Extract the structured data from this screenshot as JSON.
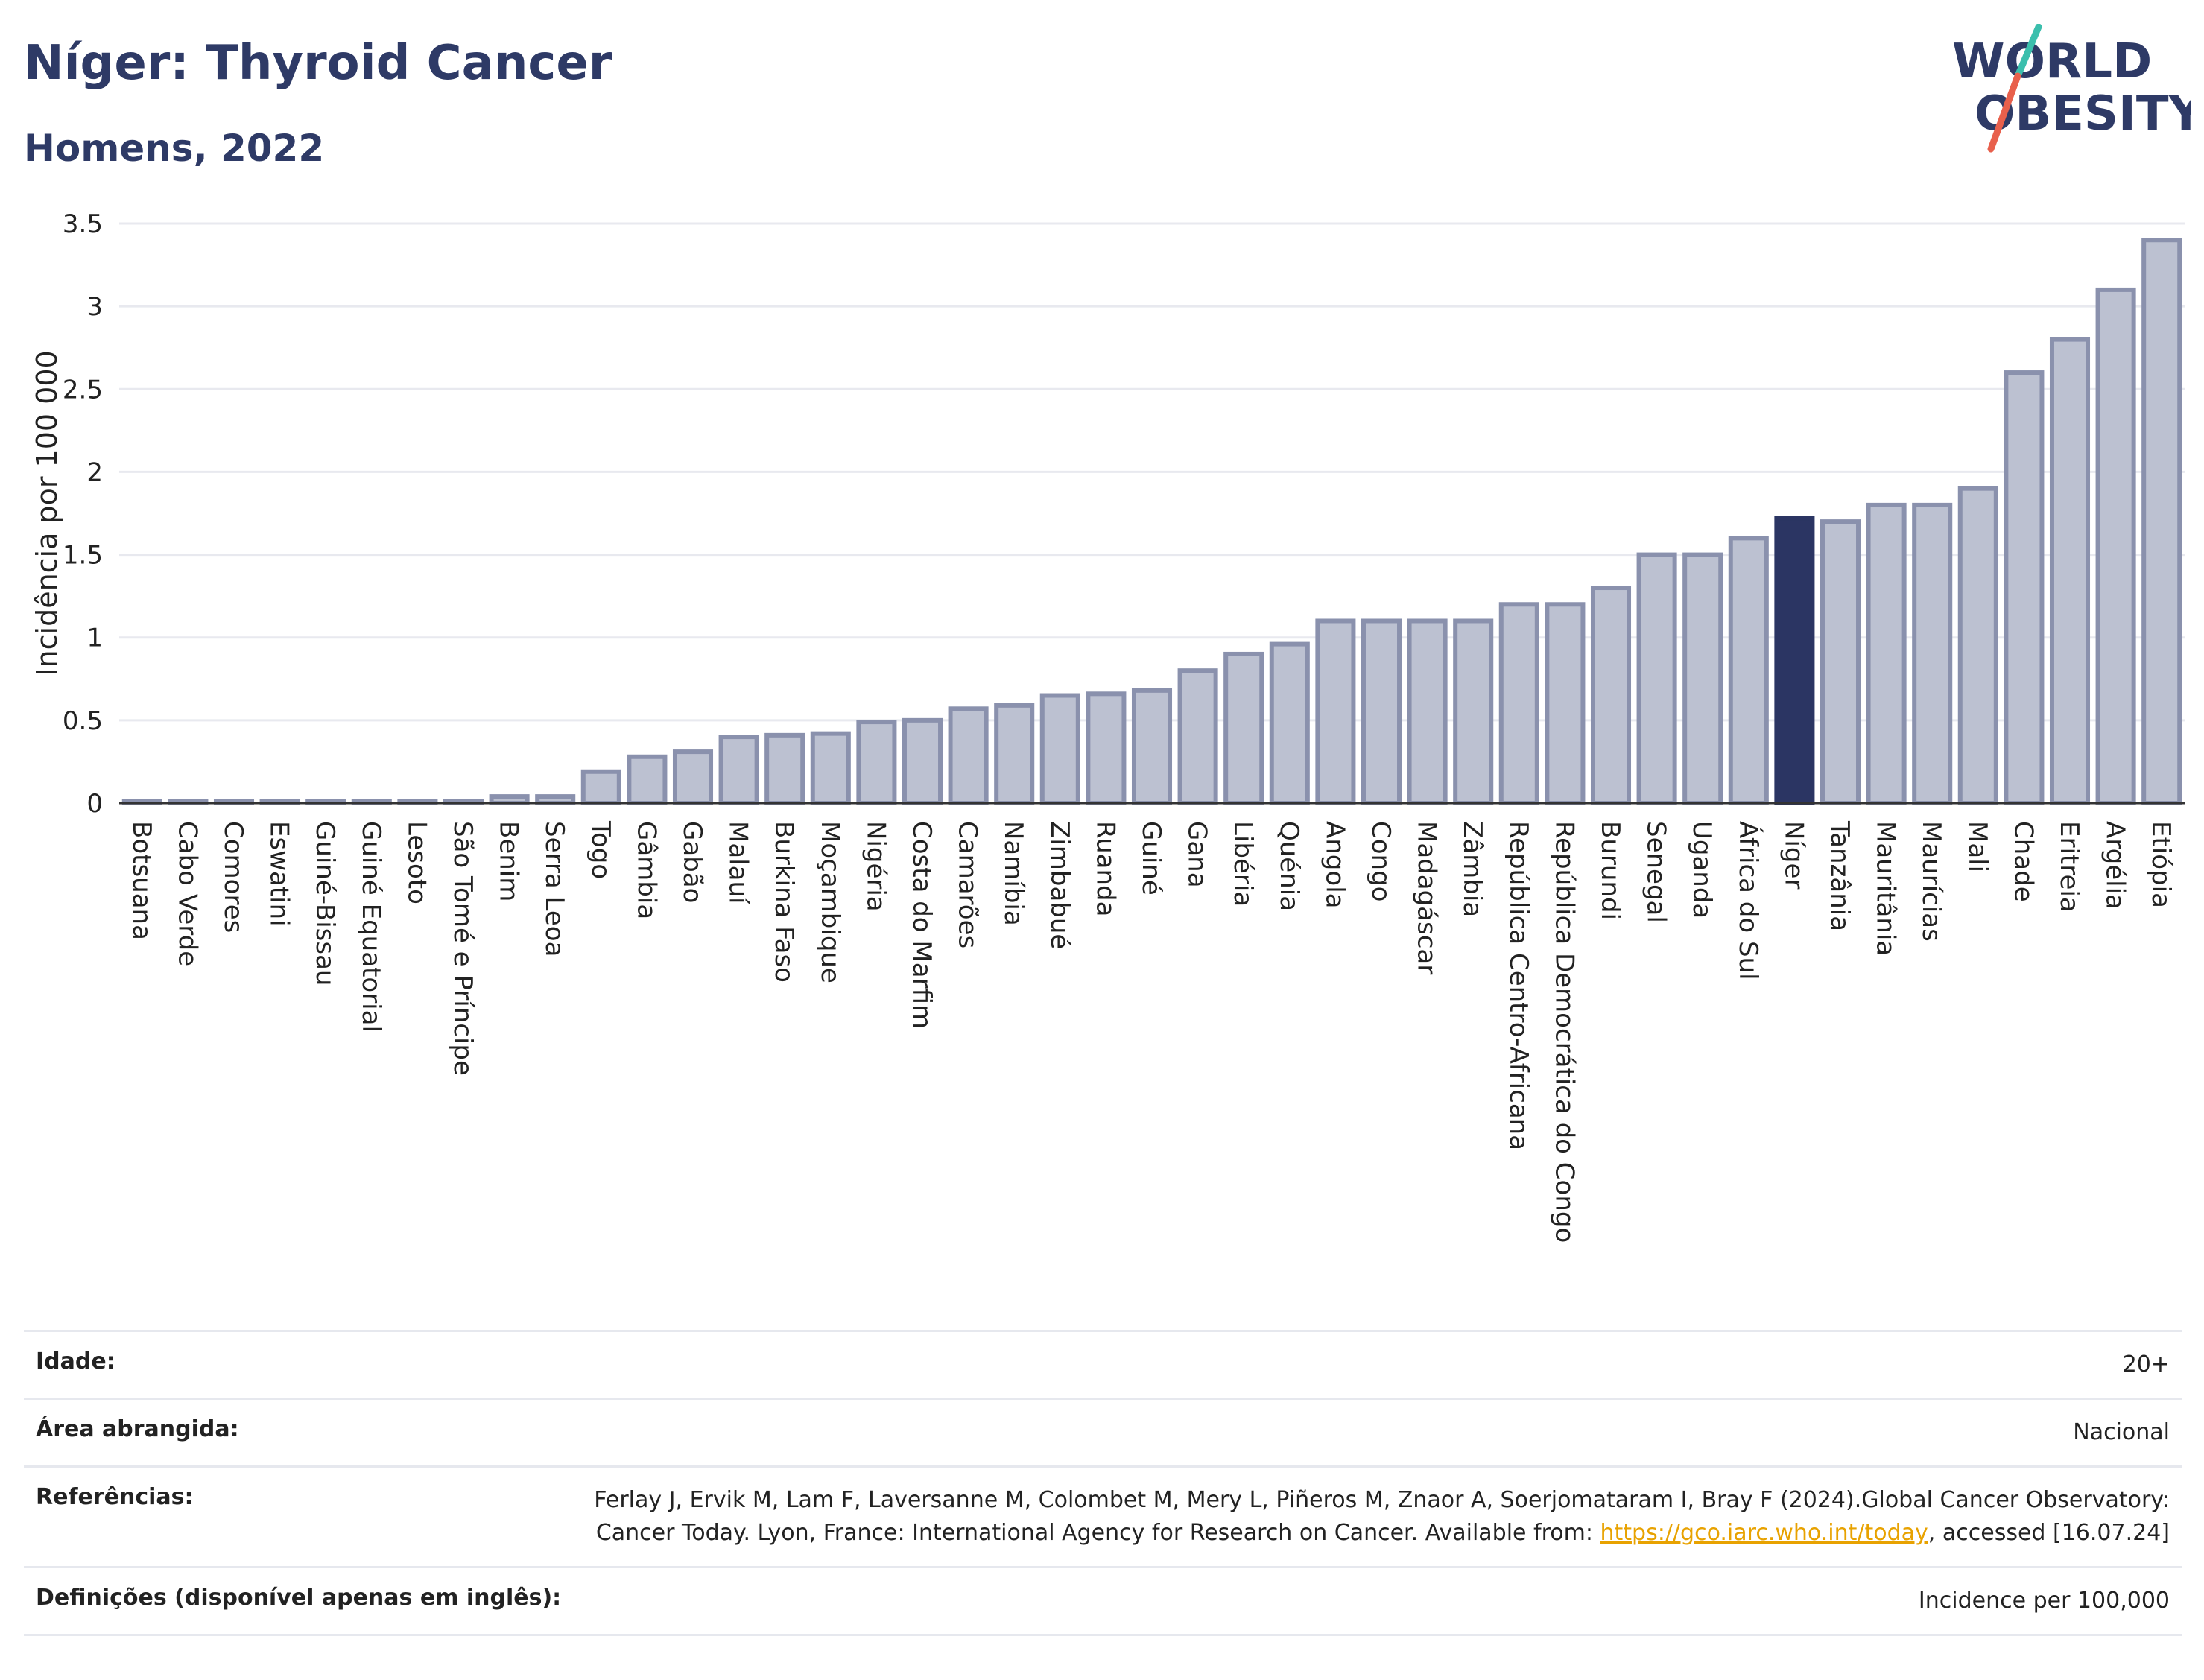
{
  "header": {
    "title": "Níger: Thyroid Cancer",
    "subtitle": "Homens, 2022"
  },
  "logo": {
    "line1": "WORLD",
    "line2": "OBESITY",
    "slash_colors": [
      "#3bbfad",
      "#e8604c"
    ]
  },
  "colors": {
    "bar": "#bcc1d1",
    "bar_border": "#8a91ad",
    "highlight": "#2b3563",
    "grid": "#e8e9ef",
    "axis": "#333333"
  },
  "chart_data": {
    "type": "bar",
    "title": "Níger: Thyroid Cancer",
    "subtitle": "Homens, 2022",
    "xlabel": "",
    "ylabel": "Incidência por 100 000",
    "ylim": [
      0,
      3.5
    ],
    "yticks": [
      0,
      0.5,
      1,
      1.5,
      2,
      2.5,
      3,
      3.5
    ],
    "ytick_labels": [
      "0",
      "0.5",
      "1",
      "1.5",
      "2",
      "2.5",
      "3",
      "3.5"
    ],
    "grid": true,
    "highlight": "Níger",
    "categories": [
      "Botsuana",
      "Cabo Verde",
      "Comores",
      "Eswatini",
      "Guiné-Bissau",
      "Guiné Equatorial",
      "Lesoto",
      "São Tomé e Príncipe",
      "Benim",
      "Serra Leoa",
      "Togo",
      "Gâmbia",
      "Gabão",
      "Malauí",
      "Burkina Faso",
      "Moçambique",
      "Nigéria",
      "Costa do Marfim",
      "Camarões",
      "Namíbia",
      "Zimbabué",
      "Ruanda",
      "Guiné",
      "Gana",
      "Libéria",
      "Quénia",
      "Angola",
      "Congo",
      "Madagáscar",
      "Zâmbia",
      "República Centro-Africana",
      "República Democrática do Congo",
      "Burundi",
      "Senegal",
      "Uganda",
      "África do Sul",
      "Níger",
      "Tanzânia",
      "Mauritânia",
      "Maurícias",
      "Mali",
      "Chade",
      "Eritreia",
      "Argélia",
      "Etiópia"
    ],
    "values": [
      0.01,
      0.01,
      0.01,
      0.01,
      0.01,
      0.01,
      0.01,
      0.01,
      0.04,
      0.04,
      0.19,
      0.28,
      0.31,
      0.4,
      0.41,
      0.42,
      0.49,
      0.5,
      0.57,
      0.59,
      0.65,
      0.66,
      0.68,
      0.8,
      0.9,
      0.96,
      1.1,
      1.1,
      1.1,
      1.1,
      1.2,
      1.2,
      1.3,
      1.5,
      1.5,
      1.6,
      1.72,
      1.7,
      1.8,
      1.8,
      1.9,
      2.6,
      2.8,
      3.1,
      3.4
    ]
  },
  "info": {
    "rows": [
      {
        "key": "Idade:",
        "value": "20+"
      },
      {
        "key": "Área abrangida:",
        "value": "Nacional"
      },
      {
        "key": "Referências:",
        "value_pre": "Ferlay J, Ervik M, Lam F, Laversanne M, Colombet M, Mery L, Piñeros M, Znaor A, Soerjomataram I, Bray F (2024).Global Cancer Observatory: Cancer Today. Lyon, France: International Agency for Research on Cancer. Available from: ",
        "link": "https://gco.iarc.who.int/today",
        "value_post": ", accessed [16.07.24]"
      },
      {
        "key": "Definições (disponível apenas em inglês):",
        "value": "Incidence per 100,000"
      }
    ]
  }
}
